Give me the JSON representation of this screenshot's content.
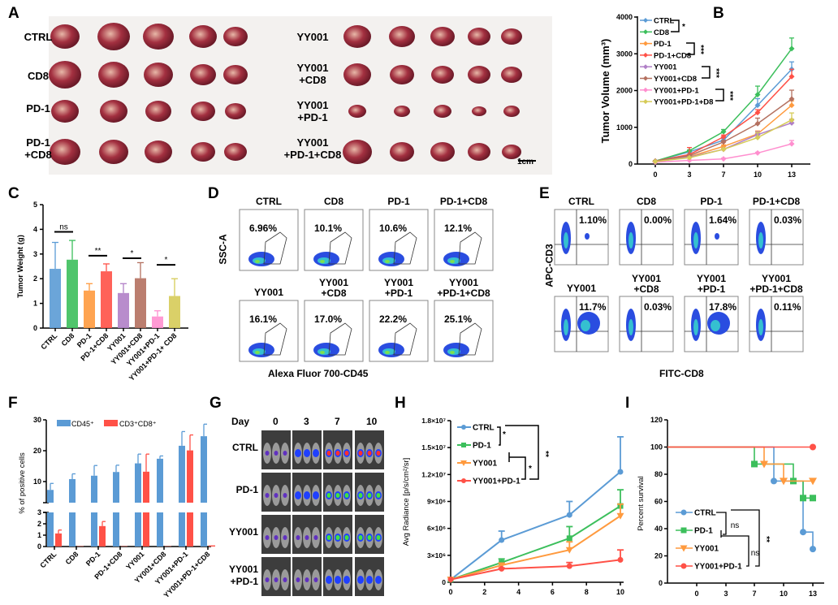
{
  "panels": {
    "A": "A",
    "B": "B",
    "C": "C",
    "D": "D",
    "E": "E",
    "F": "F",
    "G": "G",
    "H": "H",
    "I": "I"
  },
  "panelA": {
    "left_rows": [
      "CTRL",
      "CD8",
      "PD-1",
      "PD-1\n+CD8"
    ],
    "right_rows": [
      "YY001",
      "YY001\n+CD8",
      "YY001\n+PD-1",
      "YY001\n+PD-1+CD8"
    ],
    "scale_bar": "1cm"
  },
  "panelD": {
    "ylabel": "SSC-A",
    "xlabel": "Alexa Fluor 700-CD45",
    "plots": [
      {
        "title": "CTRL",
        "pct": "6.96%"
      },
      {
        "title": "CD8",
        "pct": "10.1%"
      },
      {
        "title": "PD-1",
        "pct": "10.6%"
      },
      {
        "title": "PD-1+CD8",
        "pct": "12.1%"
      },
      {
        "title": "YY001",
        "pct": "16.1%"
      },
      {
        "title": "YY001\n+CD8",
        "pct": "17.0%"
      },
      {
        "title": "YY001\n+PD-1",
        "pct": "22.2%"
      },
      {
        "title": "YY001\n+PD-1+CD8",
        "pct": "25.1%"
      }
    ]
  },
  "panelE": {
    "ylabel": "APC-CD3",
    "xlabel": "FITC-CD8",
    "plots": [
      {
        "title": "CTRL",
        "pct": "1.10%"
      },
      {
        "title": "CD8",
        "pct": "0.00%"
      },
      {
        "title": "PD-1",
        "pct": "1.64%"
      },
      {
        "title": "PD-1+CD8",
        "pct": "0.03%"
      },
      {
        "title": "YY001",
        "pct": "11.7%"
      },
      {
        "title": "YY001\n+CD8",
        "pct": "0.03%"
      },
      {
        "title": "YY001\n+PD-1",
        "pct": "17.8%"
      },
      {
        "title": "YY001\n+PD-1+CD8",
        "pct": "0.11%"
      }
    ]
  },
  "panelG": {
    "day_label": "Day",
    "days": [
      "0",
      "3",
      "7",
      "10"
    ],
    "rows": [
      "CTRL",
      "PD-1",
      "YY001",
      "YY001\n+PD-1"
    ]
  },
  "chart_data": [
    {
      "id": "B",
      "type": "line",
      "ylabel": "Tumor Volume (mm³)",
      "xlabel": "",
      "x": [
        0,
        3,
        7,
        10,
        13
      ],
      "xticks": [
        "0",
        "3",
        "7",
        "10",
        "13"
      ],
      "ylim": [
        0,
        4000
      ],
      "yticks": [
        0,
        1000,
        2000,
        3000,
        4000
      ],
      "series": [
        {
          "name": "CTRL",
          "color": "#5b9bd5",
          "values": [
            80,
            330,
            650,
            1600,
            2580
          ],
          "err": [
            90,
            360,
            700,
            1780,
            2780
          ]
        },
        {
          "name": "CD8",
          "color": "#3cbf5c",
          "values": [
            80,
            360,
            880,
            1890,
            3140
          ],
          "err": [
            90,
            380,
            940,
            2120,
            3430
          ]
        },
        {
          "name": "PD-1",
          "color": "#ff9a3e",
          "values": [
            70,
            200,
            480,
            820,
            1600
          ],
          "err": [
            80,
            220,
            520,
            900,
            1720
          ]
        },
        {
          "name": "PD-1+CD8",
          "color": "#ff5147",
          "values": [
            80,
            260,
            740,
            1400,
            2380
          ],
          "err": [
            90,
            450,
            790,
            1480,
            2580
          ]
        },
        {
          "name": "YY001",
          "color": "#b07fc7",
          "values": [
            60,
            190,
            400,
            800,
            1120
          ],
          "err": [
            70,
            210,
            430,
            880,
            1220
          ]
        },
        {
          "name": "YY001+CD8",
          "color": "#b4705f",
          "values": [
            80,
            230,
            600,
            1100,
            1770
          ],
          "err": [
            90,
            250,
            640,
            1250,
            2010
          ]
        },
        {
          "name": "YY001+PD-1",
          "color": "#ff8fcf",
          "values": [
            50,
            100,
            140,
            300,
            550
          ],
          "err": [
            55,
            110,
            160,
            320,
            640
          ]
        },
        {
          "name": "YY001+PD-1+D8",
          "color": "#d6cb58",
          "values": [
            70,
            170,
            400,
            720,
            1200
          ],
          "err": [
            80,
            190,
            430,
            860,
            1390
          ]
        }
      ],
      "significance": [
        "*",
        "***",
        "***",
        "***"
      ]
    },
    {
      "id": "C",
      "type": "bar",
      "ylabel": "Tumor Weight (g)",
      "categories": [
        "CTRL",
        "CD8",
        "PD-1",
        "PD-1+CD8",
        "YY001",
        "YY001+CD8",
        "YY001+PD-1",
        "YY001+PD-1+ CD8"
      ],
      "values": [
        2.4,
        2.77,
        1.52,
        2.3,
        1.42,
        2.02,
        0.47,
        1.3
      ],
      "err": [
        3.47,
        3.55,
        1.8,
        2.6,
        1.8,
        2.65,
        0.7,
        2.0
      ],
      "colors": [
        "#5b9bd5",
        "#3cbf5c",
        "#ff9a3e",
        "#ff5147",
        "#b07fc7",
        "#b4705f",
        "#ff8fcf",
        "#d6cb58"
      ],
      "ylim": [
        0,
        5
      ],
      "yticks": [
        0,
        1,
        2,
        3,
        4,
        5
      ],
      "significance": [
        {
          "pair": [
            0,
            1
          ],
          "label": "ns",
          "y": 3.9
        },
        {
          "pair": [
            2,
            3
          ],
          "label": "**",
          "y": 2.93
        },
        {
          "pair": [
            4,
            5
          ],
          "label": "*",
          "y": 2.83
        },
        {
          "pair": [
            6,
            7
          ],
          "label": "*",
          "y": 2.56
        }
      ]
    },
    {
      "id": "F",
      "type": "bar",
      "ylabel": "% of positive cells",
      "categories": [
        "CTRL",
        "CD8",
        "PD-1",
        "PD-1+CD8",
        "YY001",
        "YY001+CD8",
        "YY001+PD-1",
        "YY001+PD-1+CD8"
      ],
      "series": [
        {
          "name": "CD45⁺",
          "color": "#5b9bd5",
          "values": [
            7.3,
            10.8,
            11.9,
            13.1,
            15.9,
            17.4,
            21.6,
            24.7
          ],
          "err": [
            9.4,
            12.5,
            15.2,
            15.3,
            18.9,
            18.3,
            26.2,
            28.6
          ]
        },
        {
          "name": "CD3⁺CD8⁺",
          "color": "#ff5147",
          "values": [
            1.15,
            0.03,
            1.8,
            0.03,
            13.2,
            0.03,
            20.1,
            0.1
          ],
          "err": [
            1.45,
            null,
            2.2,
            null,
            18.9,
            null,
            25.1,
            null
          ]
        }
      ],
      "axis_break": true,
      "yticks_lower": [
        0,
        1,
        2,
        3
      ],
      "yticks_upper": [
        10,
        20,
        30
      ],
      "legend": "top"
    },
    {
      "id": "H",
      "type": "line",
      "ylabel": "Avg Radiance [p/s/cm²/sr]",
      "x": [
        0,
        3,
        7,
        10
      ],
      "xticks": [
        "0",
        "2",
        "4",
        "6",
        "8",
        "10"
      ],
      "ylim": [
        0,
        18000000
      ],
      "yticks": [
        "0",
        "3×10⁶",
        "6×10⁶",
        "9×10⁶",
        "1.2×10⁷",
        "1.5×10⁷",
        "1.8×10⁷"
      ],
      "series": [
        {
          "name": "CTRL",
          "color": "#5b9bd5",
          "marker": "circle",
          "values": [
            300000,
            4700000,
            7500000,
            12300000
          ],
          "err": [
            null,
            5700000,
            9000000,
            16200000
          ]
        },
        {
          "name": "PD-1",
          "color": "#3cbf5c",
          "marker": "square",
          "values": [
            300000,
            2200000,
            4900000,
            8500000
          ],
          "err": [
            null,
            2600000,
            6200000,
            10300000
          ]
        },
        {
          "name": "YY001",
          "color": "#ff9a3e",
          "marker": "triangle-down",
          "values": [
            300000,
            1900000,
            3600000,
            7400000
          ],
          "err": [
            null,
            2100000,
            4500000,
            8700000
          ]
        },
        {
          "name": "YY001+PD-1",
          "color": "#ff5147",
          "marker": "circle",
          "values": [
            300000,
            1500000,
            1800000,
            2500000
          ],
          "err": [
            null,
            1600000,
            2200000,
            3600000
          ]
        }
      ],
      "significance": [
        "*",
        "*",
        "**"
      ]
    },
    {
      "id": "I",
      "type": "line",
      "ylabel": "Percent survival",
      "xticks": [
        "0",
        "3",
        "7",
        "10",
        "13"
      ],
      "ylim": [
        0,
        120
      ],
      "yticks": [
        0,
        20,
        40,
        60,
        80,
        100,
        120
      ],
      "series": [
        {
          "name": "CTRL",
          "color": "#5b9bd5",
          "marker": "circle",
          "steps": [
            [
              0,
              100
            ],
            [
              9,
              75
            ],
            [
              12,
              37.5
            ],
            [
              13,
              25
            ]
          ]
        },
        {
          "name": "PD-1",
          "color": "#3cbf5c",
          "marker": "square",
          "steps": [
            [
              0,
              100
            ],
            [
              7,
              87.5
            ],
            [
              11,
              75
            ],
            [
              12,
              62.5
            ],
            [
              13,
              62.5
            ]
          ]
        },
        {
          "name": "YY001",
          "color": "#ff9a3e",
          "marker": "triangle-down",
          "steps": [
            [
              0,
              100
            ],
            [
              8,
              87.5
            ],
            [
              10,
              75
            ],
            [
              13,
              75
            ]
          ]
        },
        {
          "name": "YY001+PD-1",
          "color": "#ff5147",
          "marker": "circle",
          "steps": [
            [
              0,
              100
            ],
            [
              13,
              100
            ]
          ]
        }
      ],
      "significance": [
        "ns",
        "ns",
        "**"
      ]
    }
  ]
}
